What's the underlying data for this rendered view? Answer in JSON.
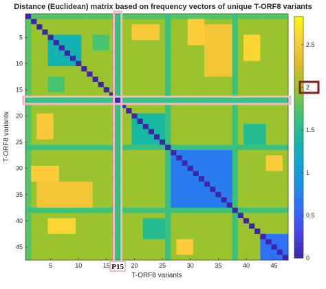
{
  "chart_data": {
    "type": "heatmap",
    "title": "Distance (Euclidean) matrix based on frequency vectors of unique T-ORF8 variants",
    "xlabel": "T-ORF8 variants",
    "ylabel": "T-ORF8 variants",
    "size": 47,
    "x_ticks": [
      5,
      10,
      15,
      20,
      25,
      30,
      35,
      40,
      45
    ],
    "x_tick_labels": [
      "5",
      "10",
      "15",
      "20",
      "25",
      "30",
      "35",
      "40",
      "45"
    ],
    "y_ticks": [
      5,
      10,
      15,
      20,
      25,
      30,
      35,
      40,
      45
    ],
    "y_tick_labels": [
      "5",
      "10",
      "15",
      "20",
      "25",
      "30",
      "35",
      "40",
      "45"
    ],
    "colorbar": {
      "ticks": [
        0,
        0.5,
        1,
        1.5,
        2,
        2.5
      ],
      "tick_labels": [
        "0",
        "0.5",
        "1",
        "1.5",
        "2",
        "2.5"
      ],
      "range": [
        0,
        2.83
      ],
      "colormap": "parula",
      "highlighted_tick": "2"
    },
    "highlight": {
      "variant": 17,
      "label": "P15",
      "row_value": 1.6,
      "box_color": "#f4b6c2",
      "marker_color": "#8b1a1a"
    },
    "background_value": 2.0,
    "diagonal_value": 0,
    "blocks": [
      {
        "rows": [
          5,
          10
        ],
        "cols": [
          5,
          10
        ],
        "value": 1.3
      },
      {
        "rows": [
          20,
          25
        ],
        "cols": [
          20,
          25
        ],
        "value": 1.4
      },
      {
        "rows": [
          27,
          37
        ],
        "cols": [
          27,
          37
        ],
        "value": 0.7
      },
      {
        "rows": [
          43,
          47
        ],
        "cols": [
          43,
          47
        ],
        "value": 0.6
      }
    ],
    "bands": [
      {
        "index": 1,
        "value": 1.75
      },
      {
        "index": 26,
        "value": 1.6
      },
      {
        "index": 38,
        "value": 1.65
      }
    ],
    "patches": [
      {
        "rows": [
          3,
          12
        ],
        "cols": [
          33,
          38
        ],
        "value": 2.45
      },
      {
        "rows": [
          33,
          38
        ],
        "cols": [
          3,
          12
        ],
        "value": 2.45
      },
      {
        "rows": [
          30,
          32
        ],
        "cols": [
          2,
          6
        ],
        "value": 2.55
      },
      {
        "rows": [
          2,
          6
        ],
        "cols": [
          30,
          32
        ],
        "value": 2.55
      },
      {
        "rows": [
          40,
          42
        ],
        "cols": [
          5,
          9
        ],
        "value": 2.6
      },
      {
        "rows": [
          5,
          9
        ],
        "cols": [
          40,
          42
        ],
        "value": 2.6
      },
      {
        "rows": [
          3,
          5
        ],
        "cols": [
          20,
          24
        ],
        "value": 2.5
      },
      {
        "rows": [
          20,
          24
        ],
        "cols": [
          3,
          5
        ],
        "value": 2.5
      },
      {
        "rows": [
          28,
          30
        ],
        "cols": [
          44,
          46
        ],
        "value": 2.55
      },
      {
        "rows": [
          44,
          46
        ],
        "cols": [
          28,
          30
        ],
        "value": 2.55
      },
      {
        "rows": [
          13,
          15
        ],
        "cols": [
          5,
          7
        ],
        "value": 1.7
      },
      {
        "rows": [
          5,
          7
        ],
        "cols": [
          13,
          15
        ],
        "value": 1.7
      },
      {
        "rows": [
          22,
          25
        ],
        "cols": [
          40,
          43
        ],
        "value": 1.5
      },
      {
        "rows": [
          40,
          43
        ],
        "cols": [
          22,
          25
        ],
        "value": 1.5
      }
    ]
  }
}
